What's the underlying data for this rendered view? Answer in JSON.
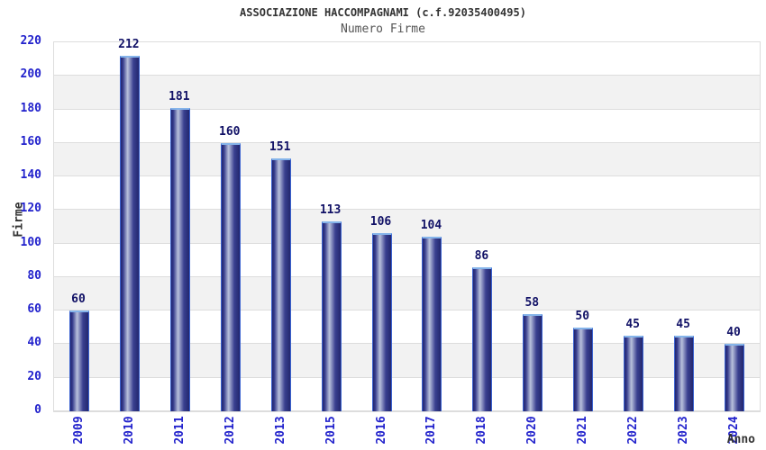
{
  "header": {
    "title": "ASSOCIAZIONE HACCOMPAGNAMI (c.f.92035400495)",
    "subtitle": "Numero Firme"
  },
  "chart_data": {
    "type": "bar",
    "title": "ASSOCIAZIONE HACCOMPAGNAMI (c.f.92035400495)",
    "subtitle": "Numero Firme",
    "categories": [
      "2009",
      "2010",
      "2011",
      "2012",
      "2013",
      "2015",
      "2016",
      "2017",
      "2018",
      "2020",
      "2021",
      "2022",
      "2023",
      "2024"
    ],
    "values": [
      60,
      212,
      181,
      160,
      151,
      113,
      106,
      104,
      86,
      58,
      50,
      45,
      45,
      40
    ],
    "xlabel": "Anno",
    "ylabel": "Firme",
    "ylim": [
      0,
      220
    ],
    "ytick_step": 20,
    "yticks": [
      0,
      20,
      40,
      60,
      80,
      100,
      120,
      140,
      160,
      180,
      200,
      220
    ],
    "grid": "horizontal alternating bands every 20 units",
    "legend_position": "none",
    "bar_value_labels_shown": true,
    "missing_years_note": "2014 and 2019 absent from axis"
  },
  "colors": {
    "background": "#ffffff",
    "title_text": "#333333",
    "subtitle_text": "#555555",
    "axis_tick_text": "#2222cc",
    "bar_value_text": "#111166",
    "axis_label_text": "#333333",
    "band_light": "#ffffff",
    "band_dark": "#f2f2f2",
    "grid_line": "#dddddd",
    "bar_border": "#3a62d0",
    "bar_border_top": "#85b4ea",
    "bar_gradient_dark": "#22266e",
    "bar_gradient_light": "#b9c1dc"
  }
}
